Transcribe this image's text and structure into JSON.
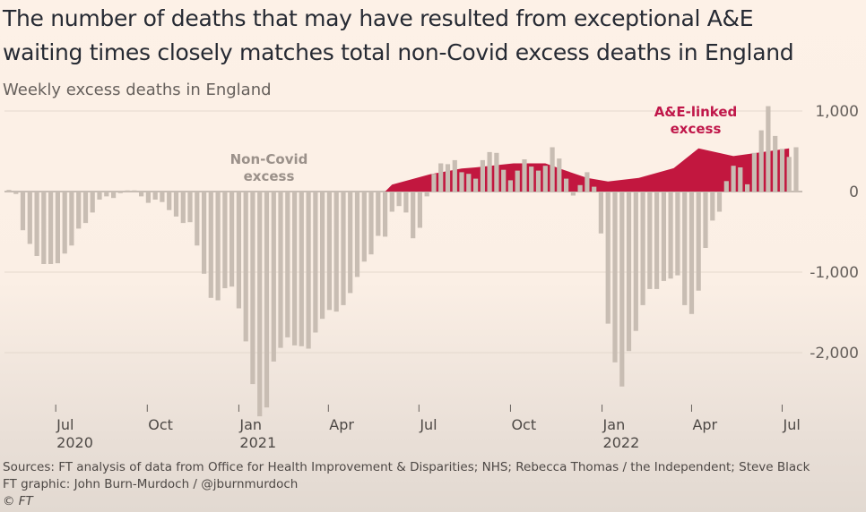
{
  "chart_data": {
    "type": "bar",
    "title": "The number of deaths that may have resulted from exceptional A&E waiting times closely matches total non-Covid excess deaths in England",
    "subtitle": "Weekly excess deaths in England",
    "xlabel": "",
    "ylabel": "",
    "ylim": [
      -2800,
      1100
    ],
    "grid": true,
    "x_ticks": [
      {
        "date": "2020-07-01",
        "label": "Jul",
        "year": "2020"
      },
      {
        "date": "2020-10-01",
        "label": "Oct",
        "year": ""
      },
      {
        "date": "2021-01-01",
        "label": "Jan",
        "year": "2021"
      },
      {
        "date": "2021-04-01",
        "label": "Apr",
        "year": ""
      },
      {
        "date": "2021-07-01",
        "label": "Jul",
        "year": ""
      },
      {
        "date": "2021-10-01",
        "label": "Oct",
        "year": ""
      },
      {
        "date": "2022-01-01",
        "label": "Jan",
        "year": "2022"
      },
      {
        "date": "2022-04-01",
        "label": "Apr",
        "year": ""
      },
      {
        "date": "2022-07-01",
        "label": "Jul",
        "year": ""
      }
    ],
    "y_ticks": [
      {
        "value": 1000,
        "label": "1,000"
      },
      {
        "value": 0,
        "label": "0"
      },
      {
        "value": -1000,
        "label": "-1,000"
      },
      {
        "value": -2000,
        "label": "-2,000"
      }
    ],
    "series": [
      {
        "name": "Non-Covid excess",
        "type": "bar",
        "color": "#c8bdb3",
        "frequency": "weekly",
        "values": [
          20,
          -30,
          -480,
          -650,
          -800,
          -900,
          -900,
          -890,
          -770,
          -670,
          -460,
          -390,
          -260,
          -100,
          -60,
          -80,
          -20,
          15,
          15,
          -60,
          -140,
          -100,
          -130,
          -230,
          -310,
          -390,
          -380,
          -670,
          -1020,
          -1320,
          -1350,
          -1200,
          -1180,
          -1450,
          -1860,
          -2390,
          -2790,
          -2680,
          -2110,
          -1940,
          -1810,
          -1910,
          -1920,
          -1950,
          -1750,
          -1580,
          -1470,
          -1490,
          -1410,
          -1260,
          -1060,
          -870,
          -780,
          -550,
          -560,
          -250,
          -180,
          -260,
          -580,
          -450,
          -60,
          220,
          350,
          340,
          390,
          240,
          220,
          160,
          390,
          490,
          480,
          270,
          140,
          260,
          400,
          310,
          260,
          320,
          550,
          410,
          160,
          -50,
          80,
          240,
          60,
          -520,
          -1640,
          -2120,
          -2420,
          -1980,
          -1730,
          -1410,
          -1210,
          -1210,
          -1110,
          -1080,
          -1040,
          -1410,
          -1520,
          -1230,
          -700,
          -360,
          -250,
          130,
          320,
          300,
          90,
          480,
          760,
          1060,
          690,
          530,
          430,
          550
        ]
      },
      {
        "name": "A&E-linked excess",
        "type": "area",
        "color": "#c2173f",
        "points": [
          {
            "date": "2021-05-28",
            "value": 0
          },
          {
            "date": "2021-06-04",
            "value": 85
          },
          {
            "date": "2021-07-12",
            "value": 215
          },
          {
            "date": "2021-08-13",
            "value": 285
          },
          {
            "date": "2021-08-27",
            "value": 300
          },
          {
            "date": "2021-10-04",
            "value": 350
          },
          {
            "date": "2021-11-05",
            "value": 350
          },
          {
            "date": "2021-11-22",
            "value": 275
          },
          {
            "date": "2021-12-17",
            "value": 170
          },
          {
            "date": "2022-01-07",
            "value": 125
          },
          {
            "date": "2022-02-07",
            "value": 170
          },
          {
            "date": "2022-03-14",
            "value": 290
          },
          {
            "date": "2022-04-08",
            "value": 535
          },
          {
            "date": "2022-05-13",
            "value": 440
          },
          {
            "date": "2022-07-08",
            "value": 535
          }
        ]
      }
    ],
    "annotations": [
      {
        "lines": [
          "Non-Covid",
          "excess"
        ],
        "color": "#9b918a"
      },
      {
        "lines": [
          "A&E-linked",
          "excess"
        ],
        "color": "#c0174a"
      }
    ]
  },
  "footer": {
    "sources": "Sources: FT analysis of data from Office for Health Improvement & Disparities; NHS; Rebecca Thomas / the Independent; Steve Black",
    "graphic": "FT graphic: John Burn-Murdoch / @jburnmurdoch",
    "copyright": "© FT"
  }
}
